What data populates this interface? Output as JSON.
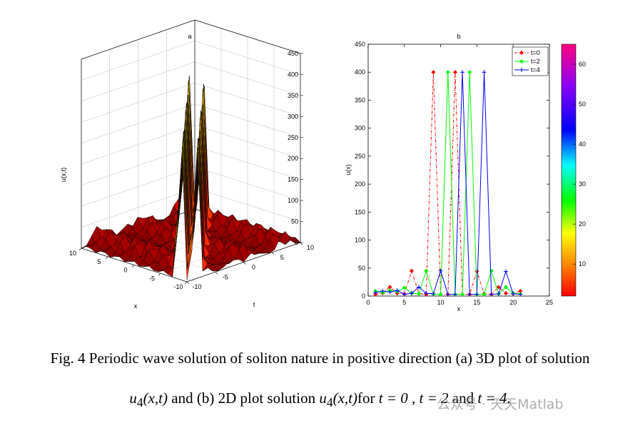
{
  "chart_data": [
    {
      "type": "surface",
      "title": "a",
      "xlabel": "x",
      "ylabel": "t",
      "zlabel": "u(x,t)",
      "xlim": [
        -10,
        10
      ],
      "ylim": [
        -10,
        10
      ],
      "zlim": [
        0,
        450
      ],
      "xticks": [
        "10",
        "5",
        "0",
        "-5",
        "-10"
      ],
      "yticks": [
        "10",
        "5",
        "0",
        "-5",
        "-10"
      ],
      "zticks": [
        "0",
        "50",
        "100",
        "150",
        "200",
        "250",
        "300",
        "350",
        "400",
        "450"
      ],
      "colormap": "jet",
      "peak_value": 400,
      "background_level": 40
    },
    {
      "type": "line",
      "title": "b",
      "xlabel": "x",
      "ylabel": "u(x)",
      "xlim": [
        0,
        25
      ],
      "ylim": [
        0,
        450
      ],
      "xticks": [
        0,
        5,
        10,
        15,
        20,
        25
      ],
      "yticks": [
        0,
        50,
        100,
        150,
        200,
        250,
        300,
        350,
        400,
        450
      ],
      "legend_position": "top-right",
      "x": [
        1,
        2,
        3,
        4,
        5,
        6,
        7,
        8,
        9,
        10,
        11,
        12,
        13,
        14,
        15,
        16,
        17,
        18,
        19,
        20,
        21
      ],
      "series": [
        {
          "name": "t=0",
          "color": "#ff0000",
          "style": "dashdot",
          "marker": "diamond",
          "values": [
            3,
            5,
            16,
            5,
            4,
            45,
            4,
            3,
            400,
            3,
            3,
            400,
            3,
            3,
            44,
            4,
            3,
            16,
            5,
            4,
            9
          ]
        },
        {
          "name": "t=2",
          "color": "#00ff00",
          "style": "solid",
          "marker": "diamond",
          "values": [
            9,
            6,
            10,
            8,
            15,
            5,
            4,
            45,
            3,
            3,
            400,
            3,
            3,
            400,
            3,
            3,
            45,
            4,
            16,
            5,
            4
          ]
        },
        {
          "name": "t=4",
          "color": "#0000ff",
          "style": "solid",
          "marker": "plus",
          "values": [
            6,
            9,
            7,
            10,
            3,
            5,
            16,
            5,
            4,
            45,
            3,
            3,
            400,
            3,
            3,
            400,
            3,
            4,
            44,
            4,
            3
          ]
        }
      ],
      "colorbar": {
        "ticks": [
          "10",
          "20",
          "30",
          "40",
          "50",
          "60"
        ],
        "range": [
          2,
          65
        ]
      }
    }
  ],
  "caption": {
    "line1": "Fig. 4 Periodic wave solution of soliton nature in positive direction (a) 3D plot of solution",
    "line2_u1": "u",
    "line2_sub1": "4",
    "line2_args1": "(x,t)",
    "line2_mid": " and (b) 2D plot solution ",
    "line2_u2": "u",
    "line2_sub2": "4",
    "line2_args2": "(x,t)",
    "line2_for": "for ",
    "line2_t0": "t = 0",
    "line2_c1": " , ",
    "line2_t2": "t = 2",
    "line2_and": " and ",
    "line2_t4": "t = 4",
    "line2_end": "."
  },
  "watermark": "公众号 · 天天Matlab"
}
